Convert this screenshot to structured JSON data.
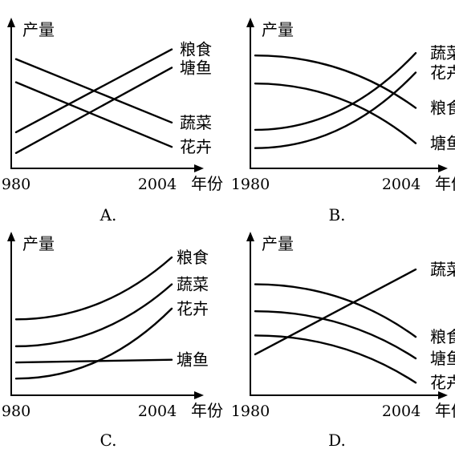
{
  "panels": [
    {
      "id": "A",
      "caption": "A.",
      "ylabel": "产量",
      "x_start": "1980",
      "x_end": "2004",
      "xunit": "年份"
    },
    {
      "id": "B",
      "caption": "B.",
      "ylabel": "产量",
      "x_start": "1980",
      "x_end": "2004",
      "xunit": "年份"
    },
    {
      "id": "C",
      "caption": "C.",
      "ylabel": "产量",
      "x_start": "1980",
      "x_end": "2004",
      "xunit": "年份"
    },
    {
      "id": "D",
      "caption": "D.",
      "ylabel": "产量",
      "x_start": "1980",
      "x_end": "2004",
      "xunit": "年份"
    }
  ],
  "chart_data": [
    {
      "type": "line",
      "panel": "A",
      "x": [
        1980,
        2004
      ],
      "ylim": [
        0,
        1
      ],
      "series": [
        {
          "name": "粮食",
          "shape": "straight",
          "values": [
            0.27,
            0.95
          ]
        },
        {
          "name": "塘鱼",
          "shape": "straight",
          "values": [
            0.1,
            0.8
          ]
        },
        {
          "name": "蔬菜",
          "shape": "straight",
          "values": [
            0.87,
            0.35
          ]
        },
        {
          "name": "花卉",
          "shape": "straight",
          "values": [
            0.68,
            0.15
          ]
        }
      ]
    },
    {
      "type": "line",
      "panel": "B",
      "x": [
        1980,
        2004
      ],
      "ylim": [
        0,
        1
      ],
      "series": [
        {
          "name": "蔬菜",
          "shape": "convex",
          "values": [
            0.29,
            0.92
          ]
        },
        {
          "name": "花卉",
          "shape": "convex",
          "values": [
            0.14,
            0.76
          ]
        },
        {
          "name": "粮食",
          "shape": "concave",
          "values": [
            0.9,
            0.47
          ]
        },
        {
          "name": "塘鱼",
          "shape": "concave",
          "values": [
            0.67,
            0.18
          ]
        }
      ]
    },
    {
      "type": "line",
      "panel": "C",
      "x": [
        1980,
        2004
      ],
      "ylim": [
        0,
        1
      ],
      "series": [
        {
          "name": "粮食",
          "shape": "convex",
          "values": [
            0.54,
            1.0
          ]
        },
        {
          "name": "蔬菜",
          "shape": "convex",
          "values": [
            0.34,
            0.8
          ]
        },
        {
          "name": "花卉",
          "shape": "convex",
          "values": [
            0.1,
            0.62
          ]
        },
        {
          "name": "塘鱼",
          "shape": "straight",
          "values": [
            0.22,
            0.24
          ]
        }
      ]
    },
    {
      "type": "line",
      "panel": "D",
      "x": [
        1980,
        2004
      ],
      "ylim": [
        0,
        1
      ],
      "series": [
        {
          "name": "蔬菜",
          "shape": "straight",
          "values": [
            0.28,
            0.91
          ]
        },
        {
          "name": "粮食",
          "shape": "concave",
          "values": [
            0.8,
            0.41
          ]
        },
        {
          "name": "塘鱼",
          "shape": "concave",
          "values": [
            0.6,
            0.25
          ]
        },
        {
          "name": "花卉",
          "shape": "concave",
          "values": [
            0.42,
            0.07
          ]
        }
      ]
    }
  ]
}
